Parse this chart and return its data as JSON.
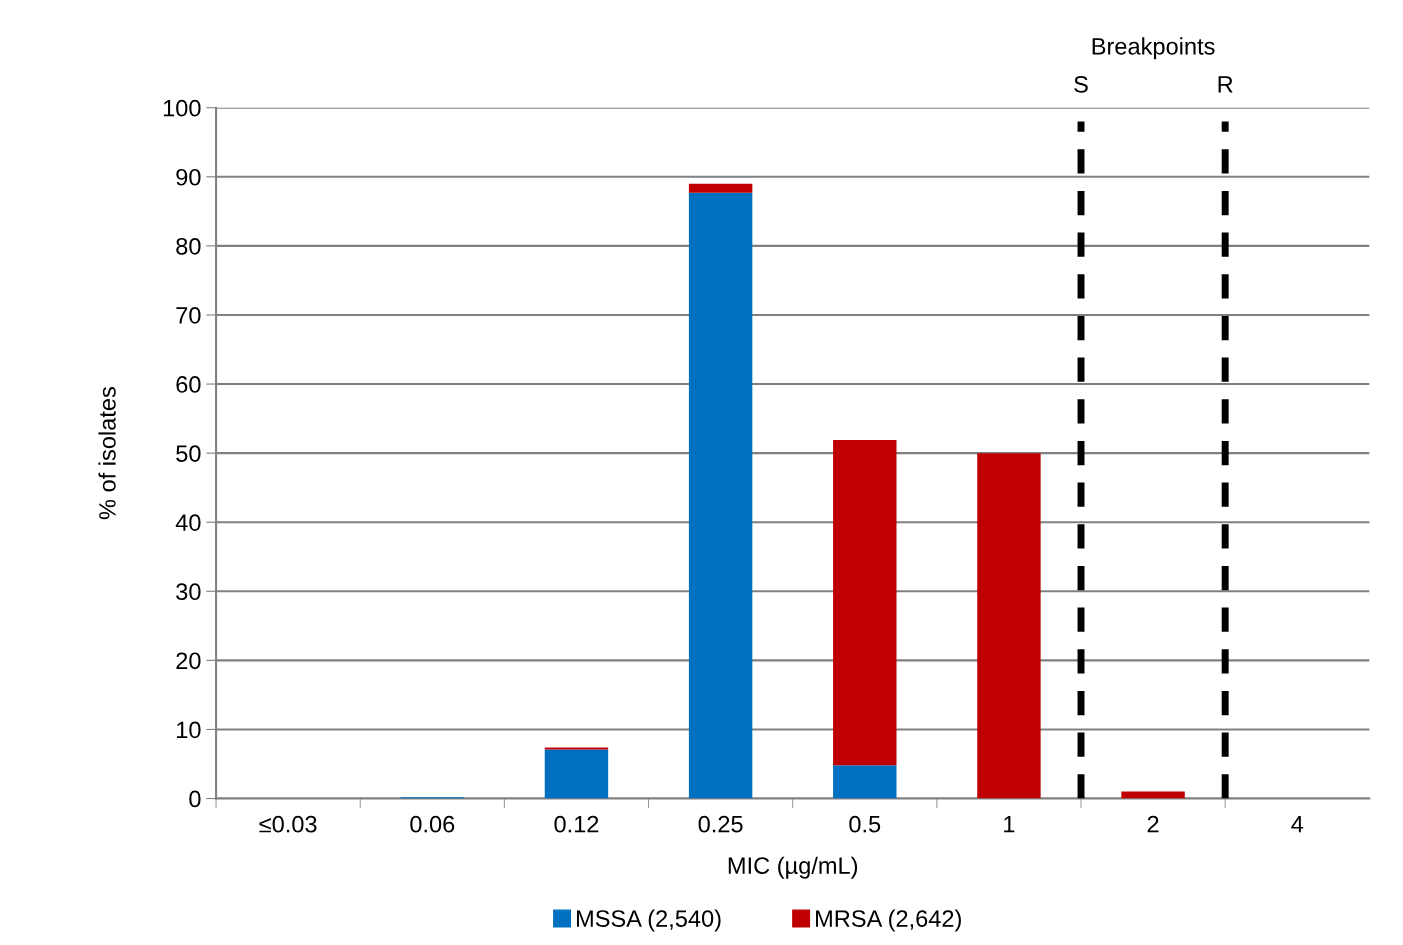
{
  "chart_data": {
    "type": "bar",
    "stacked": true,
    "xlabel": "MIC (µg/mL)",
    "ylabel": "% of isolates",
    "categories": [
      "≤0.03",
      "0.06",
      "0.12",
      "0.25",
      "0.5",
      "1",
      "2",
      "4"
    ],
    "series": [
      {
        "name": "MSSA (2,540)",
        "color": "#0070c0",
        "values": [
          null,
          0.2,
          7.1,
          87.7,
          4.8,
          0,
          0,
          0
        ]
      },
      {
        "name": "MRSA (2,642)",
        "color": "#c00000",
        "values": [
          0,
          0,
          0.3,
          1.3,
          47.1,
          50.0,
          1.0,
          0
        ]
      }
    ],
    "ylim": [
      0,
      100
    ],
    "yticks": [
      0,
      10,
      20,
      30,
      40,
      50,
      60,
      70,
      80,
      90,
      100
    ],
    "grid": "y",
    "legend": "bottom",
    "annotations": [
      "Breakpoints",
      "S",
      "R"
    ]
  }
}
